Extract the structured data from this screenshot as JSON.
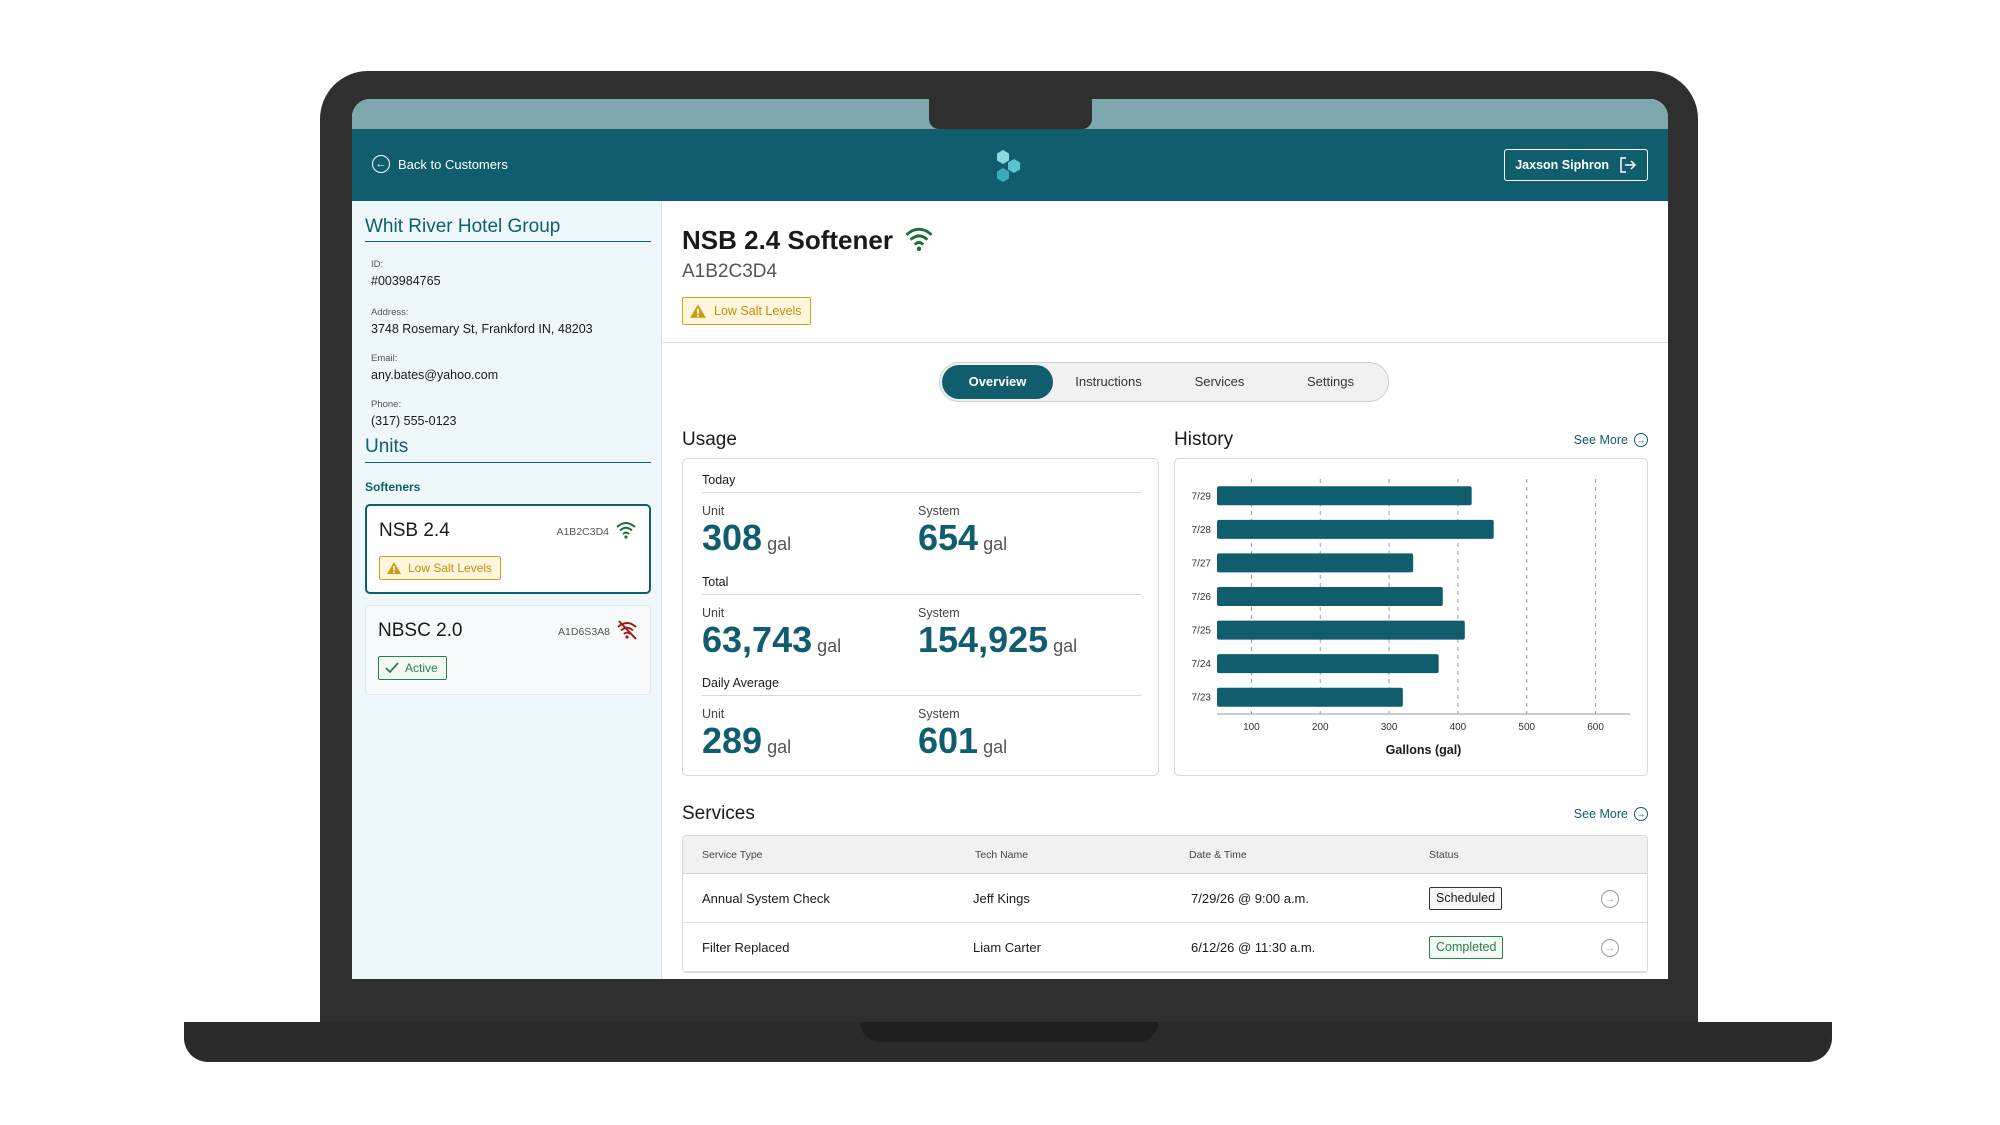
{
  "header": {
    "back_label": "Back to Customers",
    "user_name": "Jaxson Siphron",
    "colors": {
      "brand": "#105d6e",
      "status_band": "#7ea7ae"
    }
  },
  "customer": {
    "name": "Whit River Hotel Group",
    "id_label": "ID:",
    "id_value": "#003984765",
    "address_label": "Address:",
    "address_value": "3748 Rosemary St, Frankford IN, 48203",
    "email_label": "Email:",
    "email_value": "any.bates@yahoo.com",
    "phone_label": "Phone:",
    "phone_value": "(317) 555-0123"
  },
  "units": {
    "title": "Units",
    "group_label": "Softeners",
    "items": [
      {
        "name": "NSB 2.4",
        "code": "A1B2C3D4",
        "connection": "wifi-connected-icon",
        "badge": "Low Salt Levels",
        "badge_type": "warning"
      },
      {
        "name": "NBSC 2.0",
        "code": "A1D6S3A8",
        "connection": "wifi-disconnected-icon",
        "badge": "Active",
        "badge_type": "ok"
      }
    ]
  },
  "device": {
    "title": "NSB 2.4 Softener",
    "code": "A1B2C3D4",
    "alert": "Low Salt Levels"
  },
  "tabs": [
    {
      "label": "Overview",
      "active": true
    },
    {
      "label": "Instructions",
      "active": false
    },
    {
      "label": "Services",
      "active": false
    },
    {
      "label": "Settings",
      "active": false
    }
  ],
  "usage": {
    "title": "Usage",
    "today": {
      "title": "Today",
      "unit_label": "Unit",
      "unit_value": "308",
      "system_label": "System",
      "system_value": "654",
      "suffix": "gal"
    },
    "total": {
      "title": "Total",
      "unit_label": "Unit",
      "unit_value": "63,743",
      "system_label": "System",
      "system_value": "154,925",
      "suffix": "gal"
    },
    "daily_avg": {
      "title": "Daily Average",
      "unit_label": "Unit",
      "unit_value": "289",
      "system_label": "System",
      "system_value": "601",
      "suffix": "gal"
    }
  },
  "history": {
    "title": "History",
    "see_more": "See More"
  },
  "chart_data": {
    "type": "bar",
    "orientation": "horizontal",
    "categories": [
      "7/29",
      "7/28",
      "7/27",
      "7/26",
      "7/25",
      "7/24",
      "7/23"
    ],
    "values": [
      420,
      452,
      335,
      378,
      410,
      372,
      320
    ],
    "xlabel": "Gallons (gal)",
    "ylabel": "",
    "title": "",
    "xticks": [
      100,
      200,
      300,
      400,
      500,
      600
    ],
    "xlim": [
      50,
      650
    ],
    "grid": "vertical dashed",
    "bar_color": "#105d6e"
  },
  "services": {
    "title": "Services",
    "see_more": "See More",
    "columns": [
      "Service Type",
      "Tech Name",
      "Date & Time",
      "Status"
    ],
    "rows": [
      {
        "type": "Annual System Check",
        "tech": "Jeff Kings",
        "datetime": "7/29/26 @ 9:00 a.m.",
        "status": "Scheduled"
      },
      {
        "type": "Filter Replaced",
        "tech": "Liam Carter",
        "datetime": "6/12/26 @ 11:30 a.m.",
        "status": "Completed"
      }
    ]
  }
}
